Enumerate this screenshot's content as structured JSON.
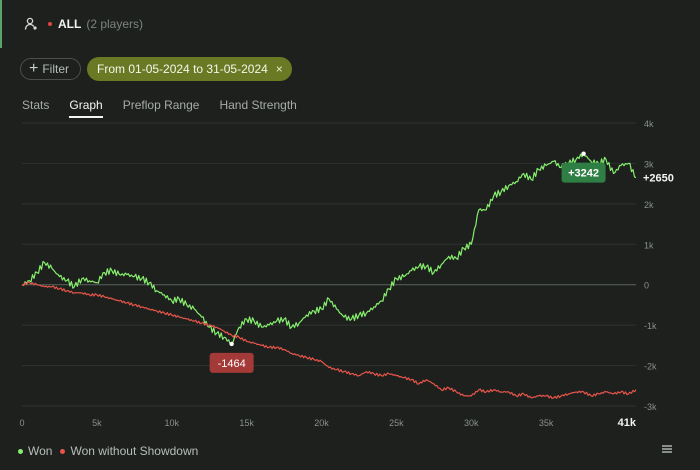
{
  "header": {
    "label": "ALL",
    "count": "(2 players)"
  },
  "filters": {
    "filter_label": "Filter",
    "date_range": "From 01-05-2024 to 31-05-2024",
    "clear_symbol": "×"
  },
  "tabs": [
    {
      "label": "Stats",
      "active": false
    },
    {
      "label": "Graph",
      "active": true
    },
    {
      "label": "Preflop Range",
      "active": false
    },
    {
      "label": "Hand Strength",
      "active": false
    }
  ],
  "colors": {
    "won": "#86ef6d",
    "won_without_showdown": "#e8554b",
    "accent": "#6a7a24",
    "annotation_high": "#2f7e44",
    "annotation_low": "#a33a37"
  },
  "chart_data": {
    "type": "line",
    "x_unit": "hands",
    "x_ticks": [
      "0",
      "5k",
      "10k",
      "15k",
      "20k",
      "25k",
      "30k",
      "35k",
      "41k"
    ],
    "x_tick_values": [
      0,
      5000,
      10000,
      15000,
      20000,
      25000,
      30000,
      35000,
      41000
    ],
    "y_ticks": [
      "4k",
      "3k",
      "2k",
      "1k",
      "0",
      "-1k",
      "-2k",
      "-3k"
    ],
    "y_tick_values": [
      4000,
      3000,
      2000,
      1000,
      0,
      -1000,
      -2000,
      -3000
    ],
    "xlim": [
      0,
      41000
    ],
    "ylim": [
      -3000,
      4000
    ],
    "grid": true,
    "series": [
      {
        "name": "Won",
        "x": [
          0,
          500,
          1000,
          1500,
          2000,
          2500,
          3000,
          3500,
          4000,
          4500,
          5000,
          5500,
          6000,
          6500,
          7000,
          7500,
          8000,
          8500,
          9000,
          9500,
          10000,
          10500,
          11000,
          11500,
          12000,
          12500,
          13000,
          13500,
          14000,
          14500,
          15000,
          15500,
          16000,
          16500,
          17000,
          17500,
          18000,
          18500,
          19000,
          19500,
          20000,
          20500,
          21000,
          21500,
          22000,
          22500,
          23000,
          23500,
          24000,
          24500,
          25000,
          25500,
          26000,
          26500,
          27000,
          27500,
          28000,
          28500,
          29000,
          29500,
          30000,
          30500,
          31000,
          31500,
          32000,
          32500,
          33000,
          33500,
          34000,
          34500,
          35000,
          35500,
          36000,
          36500,
          37000,
          37500,
          38000,
          38500,
          39000,
          39500,
          40000,
          40500,
          41000
        ],
        "values": [
          0,
          100,
          300,
          550,
          400,
          200,
          100,
          -50,
          150,
          100,
          50,
          300,
          350,
          250,
          250,
          200,
          150,
          50,
          -150,
          -250,
          -400,
          -350,
          -500,
          -600,
          -800,
          -1050,
          -1200,
          -1300,
          -1464,
          -1050,
          -850,
          -900,
          -1050,
          -1000,
          -900,
          -850,
          -1050,
          -950,
          -750,
          -650,
          -600,
          -350,
          -600,
          -800,
          -850,
          -750,
          -700,
          -550,
          -400,
          -100,
          150,
          200,
          350,
          450,
          450,
          300,
          500,
          700,
          650,
          900,
          1000,
          1850,
          1850,
          2200,
          2300,
          2450,
          2550,
          2750,
          2600,
          2850,
          2950,
          3050,
          2900,
          3000,
          3100,
          3242,
          3050,
          3000,
          3100,
          2750,
          2950,
          3000,
          2650
        ],
        "end_label": "+2650",
        "peak": {
          "x": 37500,
          "value": 3242,
          "label": "+3242"
        }
      },
      {
        "name": "Won without Showdown",
        "x": [
          0,
          500,
          1000,
          1500,
          2000,
          2500,
          3000,
          3500,
          4000,
          4500,
          5000,
          5500,
          6000,
          6500,
          7000,
          7500,
          8000,
          8500,
          9000,
          9500,
          10000,
          10500,
          11000,
          11500,
          12000,
          12500,
          13000,
          13500,
          14000,
          14500,
          15000,
          15500,
          16000,
          16500,
          17000,
          17500,
          18000,
          18500,
          19000,
          19500,
          20000,
          20500,
          21000,
          21500,
          22000,
          22500,
          23000,
          23500,
          24000,
          24500,
          25000,
          25500,
          26000,
          26500,
          27000,
          27500,
          28000,
          28500,
          29000,
          29500,
          30000,
          30500,
          31000,
          31500,
          32000,
          32500,
          33000,
          33500,
          34000,
          34500,
          35000,
          35500,
          36000,
          36500,
          37000,
          37500,
          38000,
          38500,
          39000,
          39500,
          40000,
          40500,
          41000
        ],
        "values": [
          0,
          50,
          0,
          -50,
          -50,
          -100,
          -150,
          -200,
          -200,
          -250,
          -250,
          -300,
          -350,
          -400,
          -450,
          -500,
          -550,
          -600,
          -650,
          -700,
          -750,
          -800,
          -850,
          -900,
          -950,
          -1000,
          -1050,
          -1150,
          -1250,
          -1300,
          -1400,
          -1450,
          -1500,
          -1550,
          -1550,
          -1600,
          -1700,
          -1750,
          -1800,
          -1850,
          -1900,
          -2050,
          -2100,
          -2150,
          -2200,
          -2250,
          -2150,
          -2200,
          -2250,
          -2200,
          -2250,
          -2300,
          -2350,
          -2450,
          -2350,
          -2450,
          -2600,
          -2550,
          -2650,
          -2750,
          -2750,
          -2600,
          -2650,
          -2600,
          -2650,
          -2650,
          -2750,
          -2700,
          -2800,
          -2750,
          -2750,
          -2800,
          -2750,
          -2700,
          -2650,
          -2650,
          -2750,
          -2700,
          -2650,
          -2700,
          -2650,
          -2700,
          -2600
        ]
      }
    ],
    "annotations": [
      {
        "label": "+3242",
        "x": 37500,
        "value": 3242,
        "style": "high"
      },
      {
        "label": "-1464",
        "x": 14000,
        "value": -1464,
        "style": "low"
      }
    ],
    "legend": [
      {
        "name": "Won"
      },
      {
        "name": "Won without Showdown"
      }
    ],
    "legend_position": "bottom-left"
  }
}
